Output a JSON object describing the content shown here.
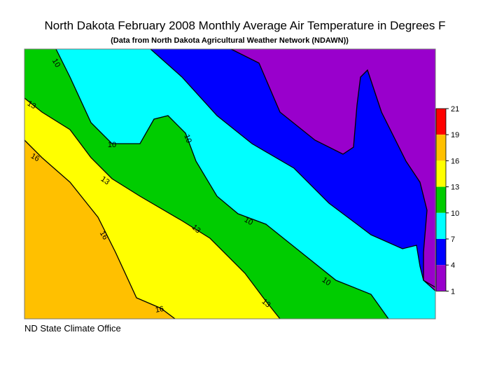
{
  "header": {
    "title": "North Dakota February 2008 Monthly Average Air Temperature in Degrees F",
    "subtitle": "(Data from North Dakota Agricultural Weather Network (NDAWN))"
  },
  "legend": {
    "ticks": [
      21,
      19,
      16,
      13,
      10,
      7,
      4,
      1
    ],
    "colors": [
      "#ff0000",
      "#ffc000",
      "#ffff00",
      "#00cc00",
      "#00ffff",
      "#0000ff",
      "#9900cc"
    ]
  },
  "contour_labels": [
    "10",
    "13",
    "16",
    "10",
    "10",
    "13",
    "16",
    "13",
    "10",
    "10",
    "16",
    "13"
  ],
  "footer": "ND State Climate Office"
}
